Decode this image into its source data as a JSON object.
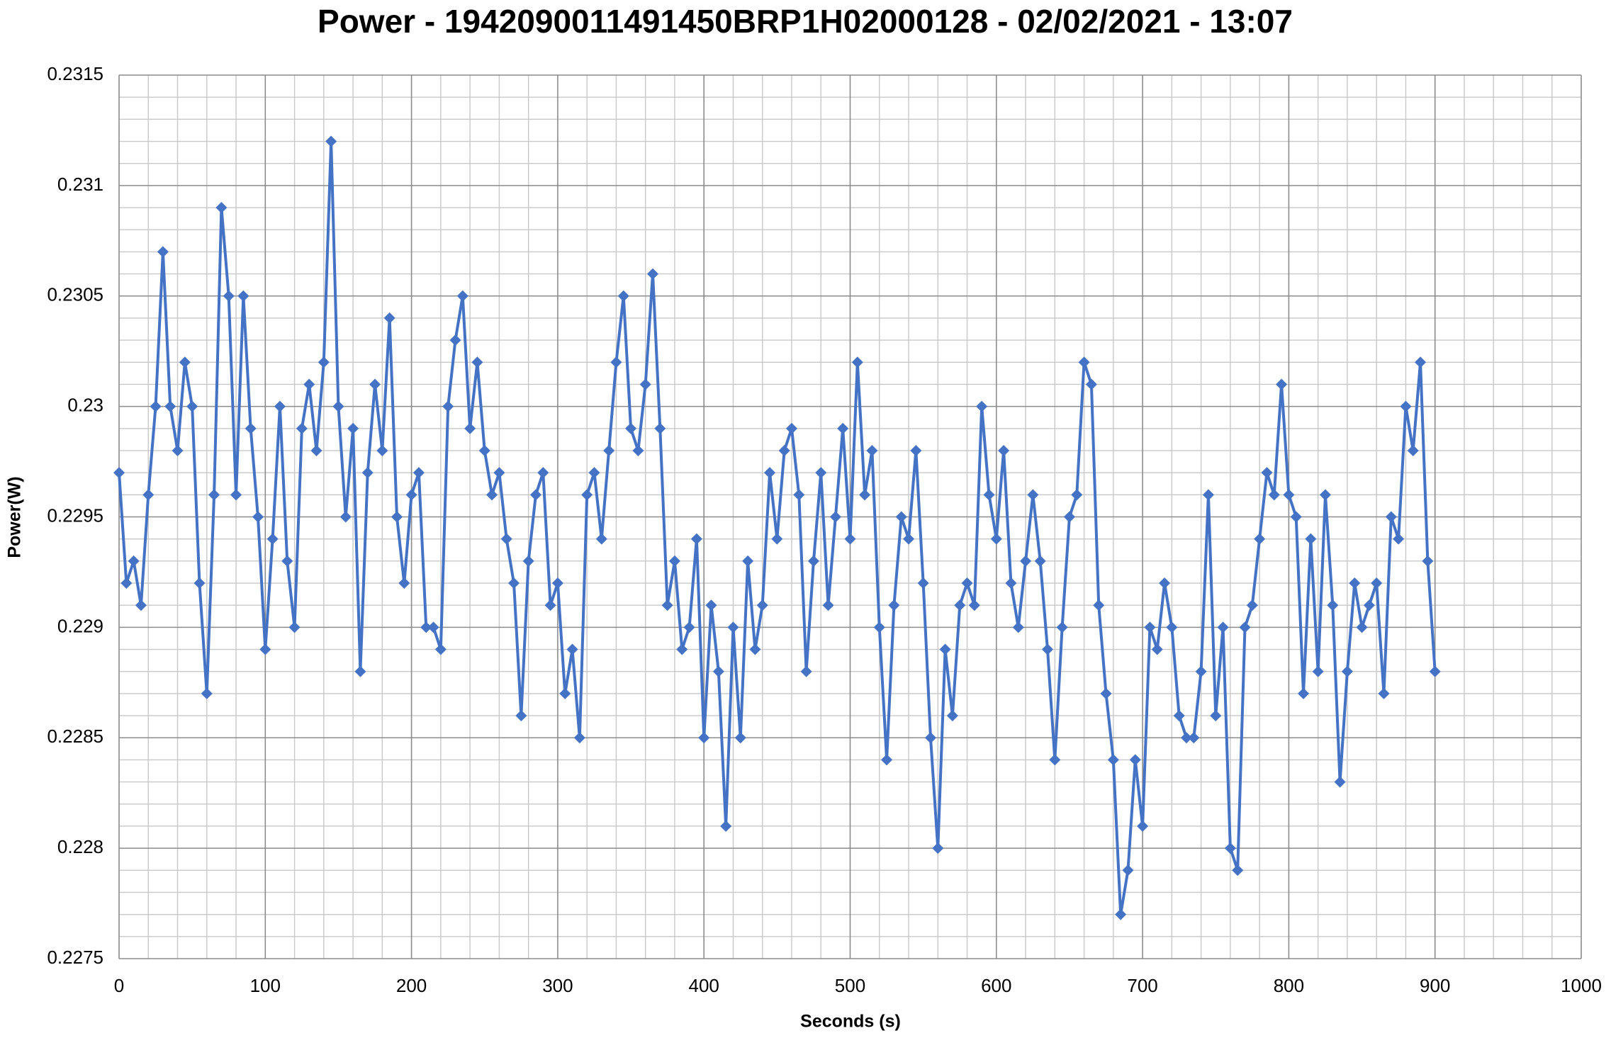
{
  "chart_data": {
    "type": "line",
    "title": "Power - 1942090011491450BRP1H02000128 - 02/02/2021 - 13:07",
    "x_label": "Seconds (s)",
    "y_label": "Power(W)",
    "color": "#4472c4",
    "markers": "diamond",
    "grid": true,
    "minor_grid": true,
    "xlim": [
      0,
      1000
    ],
    "xticks": [
      0,
      100,
      200,
      300,
      400,
      500,
      600,
      700,
      800,
      900,
      1000
    ],
    "ylim": [
      0.2275,
      0.2315
    ],
    "yticks": [
      0.2275,
      0.228,
      0.2285,
      0.229,
      0.2295,
      0.23,
      0.2305,
      0.231,
      0.2315
    ],
    "x": [
      0,
      5,
      10,
      15,
      20,
      25,
      30,
      35,
      40,
      45,
      50,
      55,
      60,
      65,
      70,
      75,
      80,
      85,
      90,
      95,
      100,
      105,
      110,
      115,
      120,
      125,
      130,
      135,
      140,
      145,
      150,
      155,
      160,
      165,
      170,
      175,
      180,
      185,
      190,
      195,
      200,
      205,
      210,
      215,
      220,
      225,
      230,
      235,
      240,
      245,
      250,
      255,
      260,
      265,
      270,
      275,
      280,
      285,
      290,
      295,
      300,
      305,
      310,
      315,
      320,
      325,
      330,
      335,
      340,
      345,
      350,
      355,
      360,
      365,
      370,
      375,
      380,
      385,
      390,
      395,
      400,
      405,
      410,
      415,
      420,
      425,
      430,
      435,
      440,
      445,
      450,
      455,
      460,
      465,
      470,
      475,
      480,
      485,
      490,
      495,
      500,
      505,
      510,
      515,
      520,
      525,
      530,
      535,
      540,
      545,
      550,
      555,
      560,
      565,
      570,
      575,
      580,
      585,
      590,
      595,
      600,
      605,
      610,
      615,
      620,
      625,
      630,
      635,
      640,
      645,
      650,
      655,
      660,
      665,
      670,
      675,
      680,
      685,
      690,
      695,
      700,
      705,
      710,
      715,
      720,
      725,
      730,
      735,
      740,
      745,
      750,
      755,
      760,
      765,
      770,
      775,
      780,
      785,
      790,
      795,
      800,
      805,
      810,
      815,
      820,
      825,
      830,
      835,
      840,
      845,
      850,
      855,
      860,
      865,
      870,
      875,
      880,
      885,
      890,
      895,
      900
    ],
    "values": [
      0.2297,
      0.2292,
      0.2293,
      0.2291,
      0.2296,
      0.23,
      0.2307,
      0.23,
      0.2298,
      0.2302,
      0.23,
      0.2292,
      0.2287,
      0.2296,
      0.2309,
      0.2305,
      0.2296,
      0.2305,
      0.2299,
      0.2295,
      0.2289,
      0.2294,
      0.23,
      0.2293,
      0.229,
      0.2299,
      0.2301,
      0.2298,
      0.2302,
      0.2312,
      0.23,
      0.2295,
      0.2299,
      0.2288,
      0.2297,
      0.2301,
      0.2298,
      0.2304,
      0.2295,
      0.2292,
      0.2296,
      0.2297,
      0.229,
      0.229,
      0.2289,
      0.23,
      0.2303,
      0.2305,
      0.2299,
      0.2302,
      0.2298,
      0.2296,
      0.2297,
      0.2294,
      0.2292,
      0.2286,
      0.2293,
      0.2296,
      0.2297,
      0.2291,
      0.2292,
      0.2287,
      0.2289,
      0.2285,
      0.2296,
      0.2297,
      0.2294,
      0.2298,
      0.2302,
      0.2305,
      0.2299,
      0.2298,
      0.2301,
      0.2306,
      0.2299,
      0.2291,
      0.2293,
      0.2289,
      0.229,
      0.2294,
      0.2285,
      0.2291,
      0.2288,
      0.2281,
      0.229,
      0.2285,
      0.2293,
      0.2289,
      0.2291,
      0.2297,
      0.2294,
      0.2298,
      0.2299,
      0.2296,
      0.2288,
      0.2293,
      0.2297,
      0.2291,
      0.2295,
      0.2299,
      0.2294,
      0.2302,
      0.2296,
      0.2298,
      0.229,
      0.2284,
      0.2291,
      0.2295,
      0.2294,
      0.2298,
      0.2292,
      0.2285,
      0.228,
      0.2289,
      0.2286,
      0.2291,
      0.2292,
      0.2291,
      0.23,
      0.2296,
      0.2294,
      0.2298,
      0.2292,
      0.229,
      0.2293,
      0.2296,
      0.2293,
      0.2289,
      0.2284,
      0.229,
      0.2295,
      0.2296,
      0.2302,
      0.2301,
      0.2291,
      0.2287,
      0.2284,
      0.2277,
      0.2279,
      0.2284,
      0.2281,
      0.229,
      0.2289,
      0.2292,
      0.229,
      0.2286,
      0.2285,
      0.2285,
      0.2288,
      0.2296,
      0.2286,
      0.229,
      0.228,
      0.2279,
      0.229,
      0.2291,
      0.2294,
      0.2297,
      0.2296,
      0.2301,
      0.2296,
      0.2295,
      0.2287,
      0.2294,
      0.2288,
      0.2296,
      0.2291,
      0.2283,
      0.2288,
      0.2292,
      0.229,
      0.2291,
      0.2292,
      0.2287,
      0.2295,
      0.2294,
      0.23,
      0.2298,
      0.2302,
      0.2293,
      0.2288
    ]
  }
}
